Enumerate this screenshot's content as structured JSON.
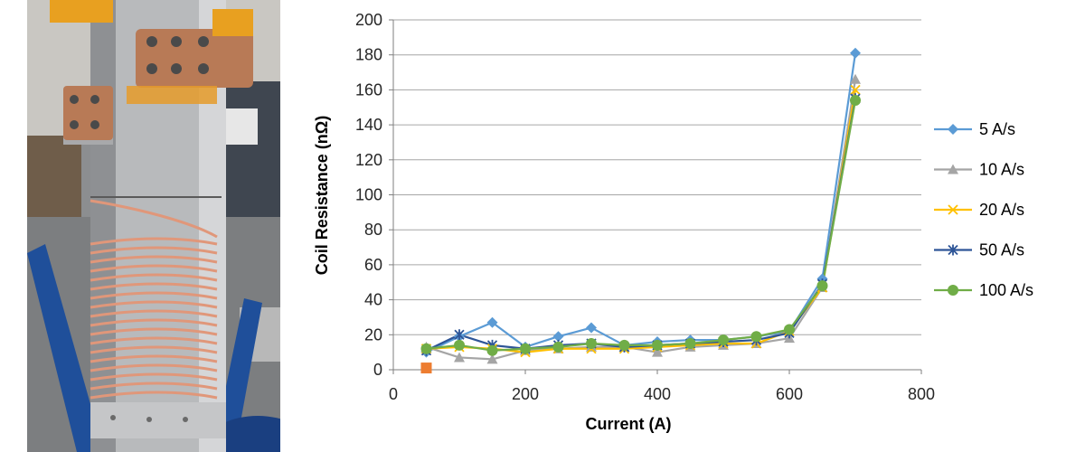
{
  "photo": {
    "description_icon": "coil-apparatus-photo"
  },
  "chart_data": {
    "type": "line",
    "title": "",
    "xlabel": "Current (A)",
    "ylabel": "Coil Resistance (nΩ)",
    "xlim": [
      0,
      800
    ],
    "ylim": [
      0,
      200
    ],
    "xticks": [
      0,
      200,
      400,
      600,
      800
    ],
    "yticks": [
      0,
      20,
      40,
      60,
      80,
      100,
      120,
      140,
      160,
      180,
      200
    ],
    "grid": "horizontal",
    "legend_position": "right",
    "series": [
      {
        "name": "5 A/s",
        "color": "#5B9BD5",
        "marker": "diamond",
        "x": [
          50,
          100,
          150,
          200,
          250,
          300,
          350,
          400,
          450,
          500,
          550,
          600,
          650,
          700
        ],
        "y": [
          10,
          19,
          27,
          13,
          19,
          24,
          14,
          16,
          17,
          17,
          19,
          22,
          52,
          181
        ]
      },
      {
        "name": "10 A/s",
        "color": "#A5A5A5",
        "marker": "triangle",
        "x": [
          50,
          100,
          150,
          200,
          250,
          300,
          350,
          400,
          450,
          500,
          550,
          600,
          650,
          700
        ],
        "y": [
          13,
          7,
          6,
          11,
          12,
          13,
          13,
          10,
          13,
          14,
          15,
          18,
          47,
          166
        ]
      },
      {
        "name": "20 A/s",
        "color": "#FFC000",
        "marker": "x",
        "x": [
          50,
          100,
          150,
          200,
          250,
          300,
          350,
          400,
          450,
          500,
          550,
          600,
          650,
          700
        ],
        "y": [
          12,
          13,
          12,
          10,
          12,
          12,
          12,
          13,
          14,
          15,
          15,
          22,
          47,
          160
        ]
      },
      {
        "name": "50 A/s",
        "color": "#2E5597",
        "marker": "star",
        "x": [
          50,
          100,
          150,
          200,
          250,
          300,
          350,
          400,
          450,
          500,
          550,
          600,
          650,
          700
        ],
        "y": [
          11,
          20,
          14,
          12,
          14,
          15,
          13,
          14,
          15,
          16,
          17,
          21,
          49,
          155
        ]
      },
      {
        "name": "100 A/s",
        "color": "#70AD47",
        "marker": "circle",
        "x": [
          50,
          100,
          150,
          200,
          250,
          300,
          350,
          400,
          450,
          500,
          550,
          600,
          650,
          700
        ],
        "y": [
          12,
          14,
          11,
          12,
          13,
          15,
          14,
          14,
          15,
          17,
          19,
          23,
          48,
          154
        ]
      }
    ],
    "extra_points": [
      {
        "x": 50,
        "y": 1,
        "color": "#ED7D31",
        "marker": "square"
      }
    ]
  }
}
